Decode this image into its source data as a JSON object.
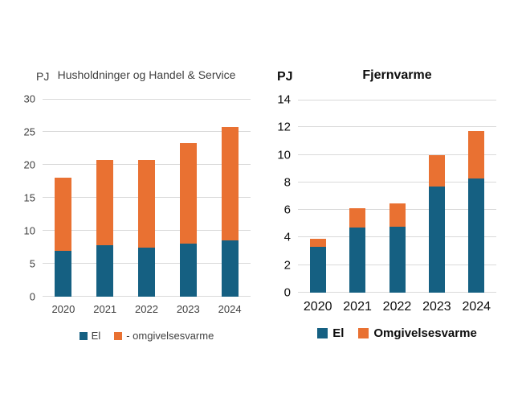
{
  "colors": {
    "el_blue": "#156082",
    "omgivelsesvarme_orange": "#E97132",
    "gridline": "#d9d9d9",
    "left_chart_text": "#404040",
    "right_chart_text": "#0d0d0d",
    "background": "#ffffff"
  },
  "chart_data": [
    {
      "type": "bar",
      "stacked": true,
      "pj_label": "PJ",
      "title": "Husholdninger og Handel & Service",
      "categories": [
        "2020",
        "2021",
        "2022",
        "2023",
        "2024"
      ],
      "series": [
        {
          "name": "El",
          "color": "#156082",
          "values": [
            7.0,
            7.8,
            7.5,
            8.0,
            8.5
          ]
        },
        {
          "name": "- omgivelsesvarme",
          "color": "#E97132",
          "values": [
            11.1,
            12.9,
            13.2,
            15.3,
            17.2
          ]
        }
      ],
      "totals": [
        18.1,
        20.7,
        20.7,
        23.3,
        25.7
      ],
      "ylabel": "PJ",
      "ylim": [
        0,
        30
      ],
      "tick_step": 5,
      "yticks": [
        0,
        5,
        10,
        15,
        20,
        25,
        30
      ],
      "grid": true,
      "legend_position": "bottom",
      "legend": [
        "El",
        "- omgivelsesvarme"
      ]
    },
    {
      "type": "bar",
      "stacked": true,
      "pj_label": "PJ",
      "title": "Fjernvarme",
      "categories": [
        "2020",
        "2021",
        "2022",
        "2023",
        "2024"
      ],
      "series": [
        {
          "name": "El",
          "color": "#156082",
          "values": [
            3.3,
            4.7,
            4.8,
            7.7,
            8.3
          ]
        },
        {
          "name": "Omgivelsesvarme",
          "color": "#E97132",
          "values": [
            0.6,
            1.4,
            1.7,
            2.3,
            3.4
          ]
        }
      ],
      "totals": [
        3.9,
        6.1,
        6.5,
        10.0,
        11.7
      ],
      "ylabel": "PJ",
      "ylim": [
        0,
        14
      ],
      "tick_step": 2,
      "yticks": [
        0,
        2,
        4,
        6,
        8,
        10,
        12,
        14
      ],
      "grid": true,
      "legend_position": "bottom",
      "legend": [
        "El",
        "Omgivelsesvarme"
      ]
    }
  ]
}
